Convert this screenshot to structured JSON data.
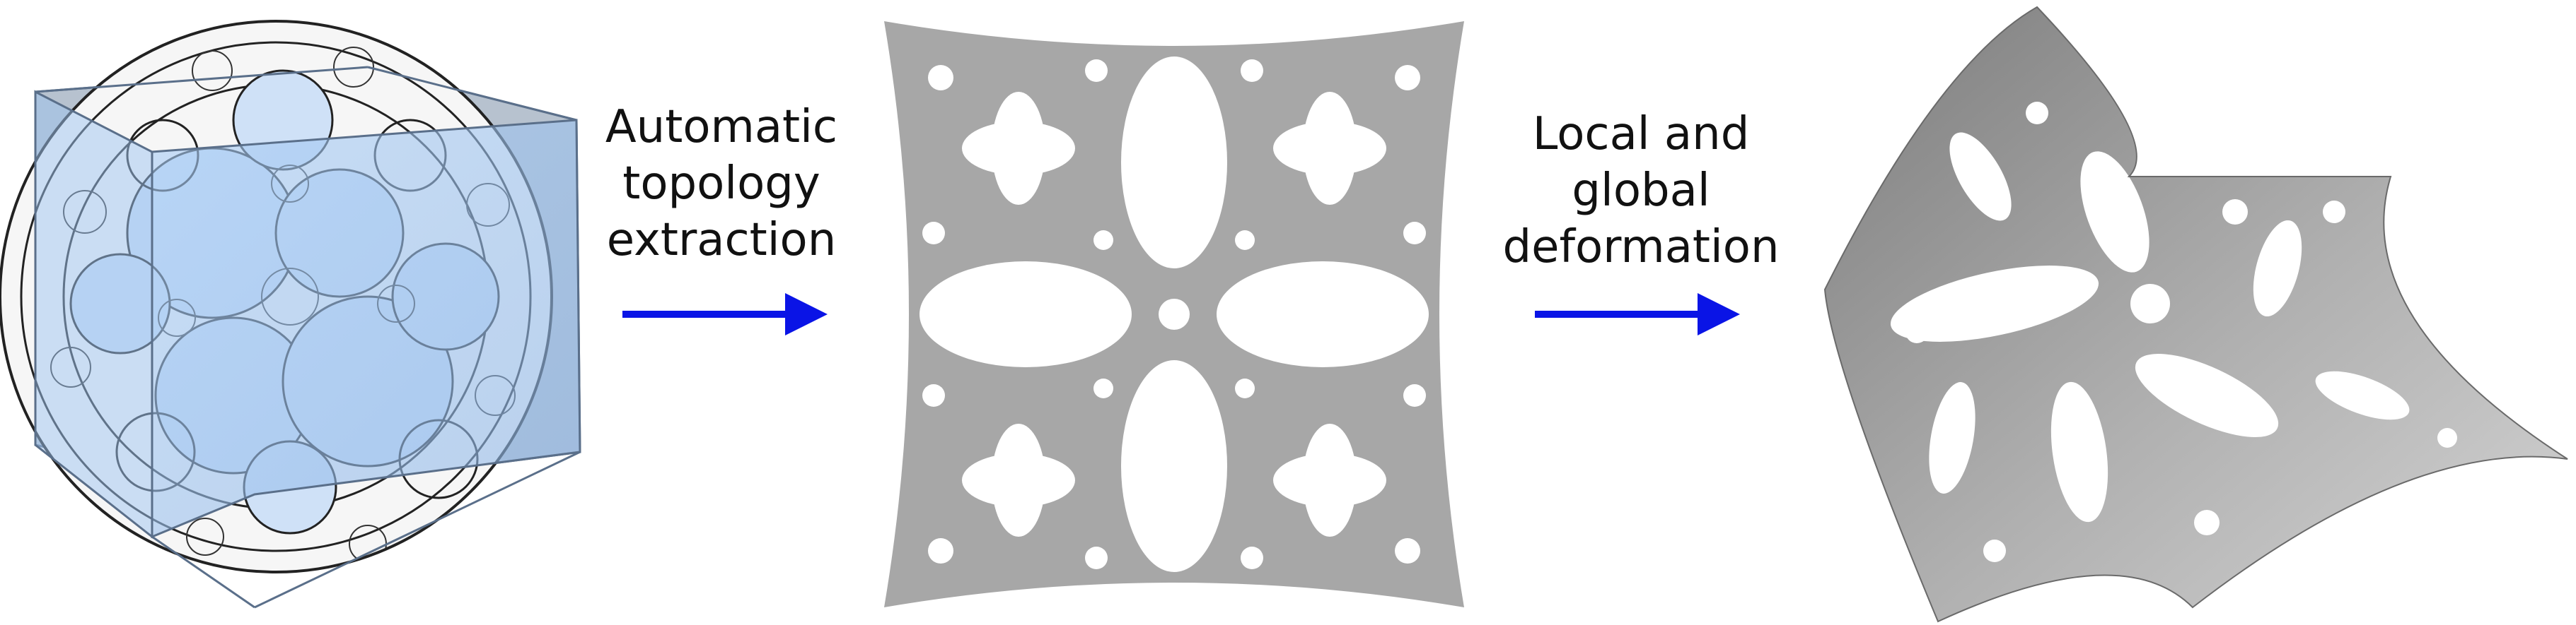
{
  "steps": [
    {
      "lines": [
        "Automatic",
        "topology",
        "extraction"
      ]
    },
    {
      "lines": [
        "Local and",
        "global",
        "deformation"
      ]
    }
  ],
  "colors": {
    "arrow": "#0a14e6",
    "cube_face": "#9ec3ef",
    "cube_edge": "#5a6f8a",
    "pattern_gray": "#a7a7a7",
    "pattern_dark": "#1a1a1a",
    "background": "#ffffff"
  }
}
